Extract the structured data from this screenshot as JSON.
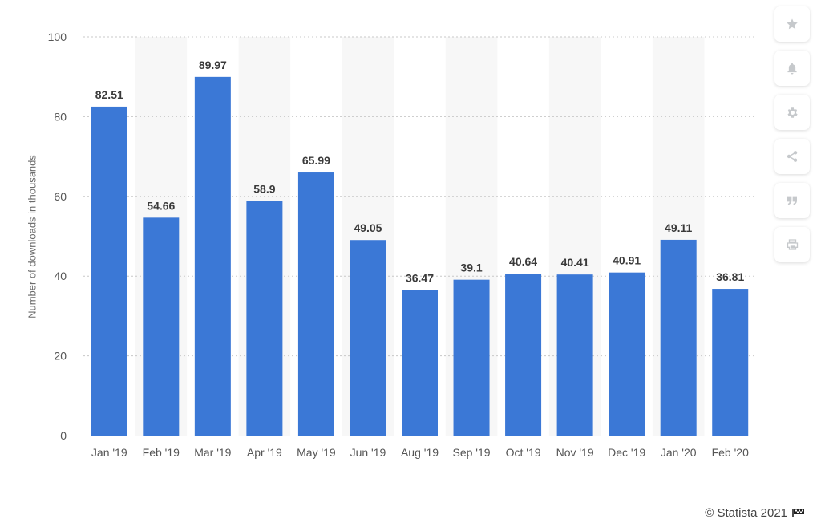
{
  "chart_data": {
    "type": "bar",
    "categories": [
      "Jan '19",
      "Feb '19",
      "Mar '19",
      "Apr '19",
      "May '19",
      "Jun '19",
      "Aug '19",
      "Sep '19",
      "Oct '19",
      "Nov '19",
      "Dec '19",
      "Jan '20",
      "Feb '20"
    ],
    "values": [
      82.51,
      54.66,
      89.97,
      58.9,
      65.99,
      49.05,
      36.47,
      39.1,
      40.64,
      40.41,
      40.91,
      49.11,
      36.81
    ],
    "value_labels": [
      "82.51",
      "54.66",
      "89.97",
      "58.9",
      "65.99",
      "49.05",
      "36.47",
      "39.1",
      "40.64",
      "40.41",
      "40.91",
      "49.11",
      "36.81"
    ],
    "ylabel": "Number of downloads in thousands",
    "xlabel": "",
    "ylim": [
      0,
      100
    ],
    "yticks": [
      0,
      20,
      40,
      60,
      80,
      100
    ],
    "grid": true,
    "colors": {
      "bar": "#3b78d6",
      "band": "#f7f7f7",
      "grid": "#c8c8c8",
      "value_label": "#3a3a3a",
      "tick_label": "#555555"
    }
  },
  "toolbar": {
    "items": [
      {
        "name": "favorite-button",
        "icon": "star-icon"
      },
      {
        "name": "notification-button",
        "icon": "bell-icon"
      },
      {
        "name": "settings-button",
        "icon": "gear-icon"
      },
      {
        "name": "share-button",
        "icon": "share-icon"
      },
      {
        "name": "cite-button",
        "icon": "quote-icon"
      },
      {
        "name": "print-button",
        "icon": "printer-icon"
      }
    ]
  },
  "footer": {
    "credit": "© Statista 2021"
  }
}
